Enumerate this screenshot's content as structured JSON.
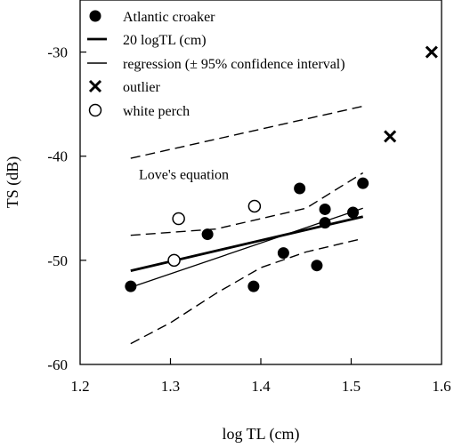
{
  "chart_data": {
    "type": "scatter",
    "xlabel": "log TL (cm)",
    "ylabel": "TS (dB)",
    "xlim": [
      1.2,
      1.6
    ],
    "ylim": [
      -60,
      -25
    ],
    "xticks": [
      1.2,
      1.3,
      1.4,
      1.5,
      1.6
    ],
    "yticks": [
      -60,
      -50,
      -40,
      -30
    ],
    "xtick_labels": [
      "1.2",
      "1.3",
      "1.4",
      "1.5",
      "1.6"
    ],
    "ytick_labels": [
      "-60",
      "-50",
      "-40",
      "-30"
    ],
    "legend_position": "top-left",
    "legend": [
      {
        "key": "croaker",
        "label": "Atlantic croaker",
        "marker": "filled-circle"
      },
      {
        "key": "tl20",
        "label": "20  logTL (cm)",
        "marker": "thick-line"
      },
      {
        "key": "regression",
        "label": "regression (± 95% confidence interval)",
        "marker": "dash"
      },
      {
        "key": "outlier",
        "label": "outlier",
        "marker": "x"
      },
      {
        "key": "perch",
        "label": "white perch",
        "marker": "open-circle"
      }
    ],
    "annotations": [
      {
        "text": "Love's equation",
        "x": 1.265,
        "y": -42.2
      }
    ],
    "series": [
      {
        "name": "Atlantic croaker",
        "marker": "filled-circle",
        "color": "#000000",
        "x": [
          1.256,
          1.341,
          1.392,
          1.425,
          1.443,
          1.462,
          1.471,
          1.471,
          1.502,
          1.513
        ],
        "y": [
          -52.5,
          -47.5,
          -52.5,
          -49.3,
          -43.1,
          -50.5,
          -45.1,
          -46.4,
          -45.4,
          -42.6
        ]
      },
      {
        "name": "white perch",
        "marker": "open-circle",
        "color": "#000000",
        "x": [
          1.304,
          1.309,
          1.393
        ],
        "y": [
          -50.0,
          -46.0,
          -44.8
        ]
      },
      {
        "name": "outlier",
        "marker": "x",
        "color": "#000000",
        "x": [
          1.543,
          1.589
        ],
        "y": [
          -38.1,
          -30.0
        ]
      }
    ],
    "lines": [
      {
        "name": "20  logTL (cm)",
        "style": "thick",
        "x": [
          1.256,
          1.513
        ],
        "y": [
          -51.0,
          -45.8
        ]
      },
      {
        "name": "Love's equation",
        "style": "thin",
        "x": [
          1.256,
          1.513
        ],
        "y": [
          -52.6,
          -45.0
        ]
      },
      {
        "name": "regression upper CI",
        "style": "dashed",
        "x": [
          1.256,
          1.35,
          1.45,
          1.513
        ],
        "y": [
          -47.6,
          -47.0,
          -45.0,
          -41.6
        ]
      },
      {
        "name": "regression lower CI",
        "style": "dashed",
        "x": [
          1.256,
          1.3,
          1.35,
          1.4,
          1.45,
          1.513
        ],
        "y": [
          -58.0,
          -56.0,
          -53.2,
          -50.7,
          -49.2,
          -47.9
        ]
      },
      {
        "name": "Love's equation CI",
        "style": "dashed",
        "x": [
          1.256,
          1.513
        ],
        "y": [
          -40.2,
          -35.2
        ]
      }
    ]
  }
}
